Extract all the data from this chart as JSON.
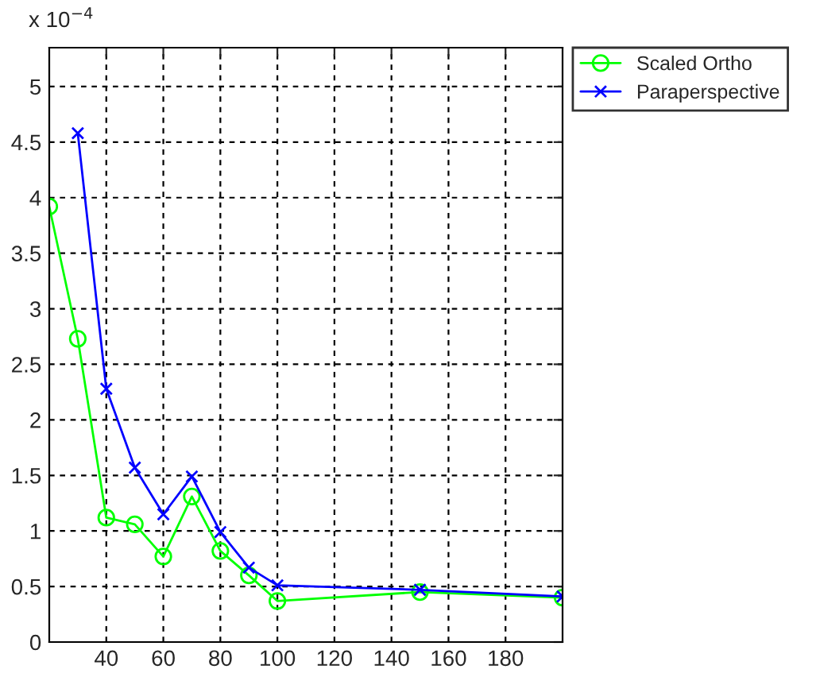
{
  "chart_data": {
    "type": "line",
    "annotations": [
      "x 10$^{−4}$"
    ],
    "x": [
      20,
      30,
      40,
      50,
      60,
      70,
      80,
      90,
      100,
      150,
      200
    ],
    "series": [
      {
        "name": "Scaled Ortho",
        "color": "#00ff00",
        "marker": "circle",
        "values": [
          3.92,
          2.73,
          1.12,
          1.06,
          0.77,
          1.31,
          0.82,
          0.6,
          0.37,
          0.45,
          0.4
        ]
      },
      {
        "name": "Paraperspective",
        "color": "#0000ff",
        "marker": "cross",
        "values": [
          null,
          4.58,
          2.28,
          1.57,
          1.15,
          1.49,
          0.99,
          0.67,
          0.51,
          0.47,
          0.41
        ]
      }
    ],
    "xlim": [
      20,
      200
    ],
    "xticks": [
      40,
      60,
      80,
      100,
      120,
      140,
      160,
      180
    ],
    "ylim": [
      0,
      5.35
    ],
    "yticks": [
      0,
      0.5,
      1,
      1.5,
      2,
      2.5,
      3,
      3.5,
      4,
      4.5,
      5
    ],
    "grid": true,
    "legend": "top right",
    "line_style": "solid"
  }
}
